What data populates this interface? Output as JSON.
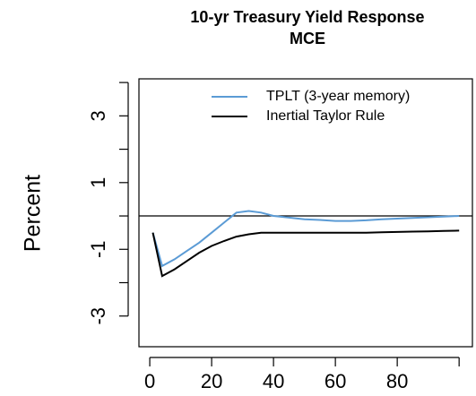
{
  "chart_data": {
    "type": "line",
    "title": "10-yr Treasury Yield Response",
    "subtitle": "MCE",
    "ylabel": "Percent",
    "x": [
      1,
      4,
      8,
      12,
      16,
      20,
      24,
      28,
      32,
      36,
      40,
      45,
      50,
      55,
      60,
      65,
      70,
      75,
      80,
      85,
      90,
      95,
      100
    ],
    "series": [
      {
        "name": "TPLT (3-year memory)",
        "color": "#5b9bd5",
        "values": [
          -0.5,
          -1.5,
          -1.3,
          -1.05,
          -0.8,
          -0.5,
          -0.2,
          0.1,
          0.15,
          0.1,
          0.0,
          -0.05,
          -0.1,
          -0.12,
          -0.15,
          -0.15,
          -0.13,
          -0.1,
          -0.08,
          -0.06,
          -0.04,
          -0.02,
          0.0
        ]
      },
      {
        "name": "Inertial Taylor Rule",
        "color": "#000000",
        "values": [
          -0.5,
          -1.8,
          -1.6,
          -1.35,
          -1.1,
          -0.9,
          -0.75,
          -0.62,
          -0.55,
          -0.5,
          -0.5,
          -0.5,
          -0.5,
          -0.5,
          -0.5,
          -0.5,
          -0.5,
          -0.49,
          -0.48,
          -0.47,
          -0.46,
          -0.45,
          -0.44
        ]
      }
    ],
    "xlim": [
      -3.5,
      104.3
    ],
    "ylim": [
      -3.92,
      4.11
    ],
    "xticks": [
      0,
      20,
      40,
      60,
      80
    ],
    "xminor_ticks": [
      100
    ],
    "yticks": [
      -3,
      -1,
      1,
      3
    ],
    "yminor_ticks": [
      -2,
      0,
      2,
      4
    ],
    "hline": 0,
    "legend": "top-right"
  }
}
